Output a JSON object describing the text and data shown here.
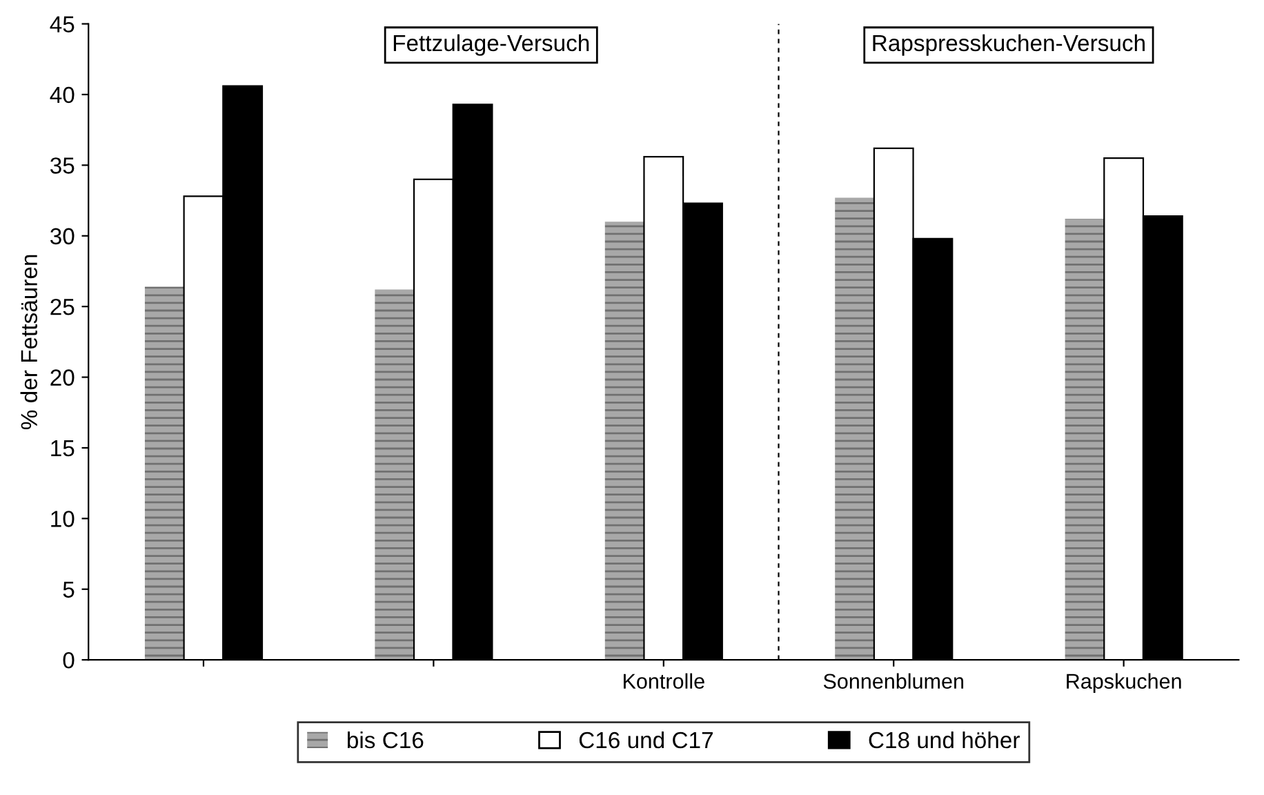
{
  "chart_data": {
    "type": "bar",
    "ylabel": "% der Fettsäuren",
    "categories": [
      null,
      null,
      "Kontrolle",
      "Sonnenblumen",
      "Rapskuchen"
    ],
    "series": [
      {
        "name": "bis C16",
        "color": "#a8a8a8",
        "values": [
          26.4,
          26.2,
          31.0,
          32.7,
          31.2
        ]
      },
      {
        "name": "C16 und C17",
        "color": "#ffffff",
        "values": [
          32.8,
          34.0,
          35.6,
          36.2,
          35.5
        ]
      },
      {
        "name": "C18 und höher",
        "color": "#000000",
        "values": [
          40.6,
          39.3,
          32.3,
          29.8,
          31.4
        ]
      }
    ],
    "ylim": [
      0,
      45
    ],
    "yticks": [
      0,
      5,
      10,
      15,
      20,
      25,
      30,
      35,
      40,
      45
    ],
    "annotations": [
      "Fettzulage-Versuch",
      "Rapspresskuchen-Versuch"
    ],
    "legend": "bottom",
    "grid": false
  }
}
